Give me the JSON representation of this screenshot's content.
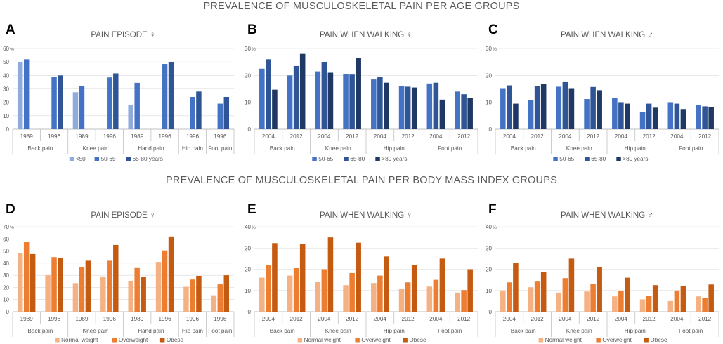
{
  "figure": {
    "title_top": "PREVALENCE OF MUSCULOSKELETAL PAIN PER AGE GROUPS",
    "title_bottom": "PREVALENCE OF MUSCULOSKELETAL PAIN PER BODY MASS INDEX GROUPS"
  },
  "colors": {
    "age_lt50": "#8FAADC",
    "age_50_65": "#4472C4",
    "age_65_80": "#2F5597",
    "age_gt80": "#1F3864",
    "bmi_normal": "#F4B183",
    "bmi_overweight": "#ED7D31",
    "bmi_obese": "#C55A11",
    "axis": "#bfbfbf",
    "text": "#595959"
  },
  "chart_data": [
    {
      "panel": "A",
      "type": "bar",
      "title": "PAIN EPISODE ♀",
      "ylim": [
        0,
        60
      ],
      "yticks": [
        0,
        10,
        20,
        30,
        40,
        50,
        60
      ],
      "ytick_labels": [
        "0",
        "10",
        "20",
        "30",
        "40",
        "50",
        "60"
      ],
      "unit": "%",
      "groups": [
        {
          "label": "Back pain",
          "categories": [
            "1989",
            "1996"
          ]
        },
        {
          "label": "Knee pain",
          "categories": [
            "1989",
            "1996"
          ]
        },
        {
          "label": "Hand pain",
          "categories": [
            "1989",
            "1996"
          ]
        },
        {
          "label": "Hip pain",
          "categories": [
            "1996"
          ]
        },
        {
          "label": "Foot pain",
          "categories": [
            "1996"
          ]
        }
      ],
      "series": [
        {
          "name": "<50",
          "color_key": "age_lt50",
          "values": [
            50,
            null,
            27.5,
            null,
            18,
            null,
            null,
            null
          ]
        },
        {
          "name": "50-65",
          "color_key": "age_50_65",
          "values": [
            52,
            39,
            32,
            38.5,
            34.5,
            48.5,
            24,
            19
          ]
        },
        {
          "name": "65-80 years",
          "color_key": "age_65_80",
          "values": [
            null,
            40,
            null,
            41.5,
            null,
            50,
            28,
            24
          ]
        }
      ]
    },
    {
      "panel": "B",
      "type": "bar",
      "title": "PAIN WHEN WALKING ♀",
      "ylim": [
        0,
        30
      ],
      "yticks": [
        0,
        10,
        20,
        30
      ],
      "ytick_labels": [
        "0",
        "10",
        "20",
        "30"
      ],
      "unit": "%",
      "groups": [
        {
          "label": "Back pain",
          "categories": [
            "2004",
            "2012"
          ]
        },
        {
          "label": "Knee pain",
          "categories": [
            "2004",
            "2012"
          ]
        },
        {
          "label": "Hip pain",
          "categories": [
            "2004",
            "2012"
          ]
        },
        {
          "label": "Foot pain",
          "categories": [
            "2004",
            "2012"
          ]
        }
      ],
      "series": [
        {
          "name": "50-65",
          "color_key": "age_50_65",
          "values": [
            22.5,
            20,
            21.5,
            20.5,
            18.5,
            16,
            17,
            14
          ]
        },
        {
          "name": "65-80",
          "color_key": "age_65_80",
          "values": [
            26,
            23.5,
            25,
            20.3,
            19.5,
            15.8,
            17.3,
            13
          ]
        },
        {
          "name": ">80 years",
          "color_key": "age_gt80",
          "values": [
            14.7,
            28,
            21,
            26.5,
            17.3,
            15.5,
            11,
            11.7
          ]
        }
      ]
    },
    {
      "panel": "C",
      "type": "bar",
      "title": "PAIN WHEN WALKING ♂",
      "ylim": [
        0,
        30
      ],
      "yticks": [
        0,
        10,
        20,
        30
      ],
      "ytick_labels": [
        "0",
        "10",
        "20",
        "30"
      ],
      "unit": "%",
      "groups": [
        {
          "label": "Back pain",
          "categories": [
            "2004",
            "2012"
          ]
        },
        {
          "label": "Knee pain",
          "categories": [
            "2004",
            "2012"
          ]
        },
        {
          "label": "Hip pain",
          "categories": [
            "2004",
            "2012"
          ]
        },
        {
          "label": "Foot pain",
          "categories": [
            "2004",
            "2012"
          ]
        }
      ],
      "series": [
        {
          "name": "50-65",
          "color_key": "age_50_65",
          "values": [
            15,
            10.7,
            15.8,
            11.2,
            11.5,
            6.5,
            9.8,
            9
          ]
        },
        {
          "name": "65-80",
          "color_key": "age_65_80",
          "values": [
            16.3,
            16,
            17.5,
            15.7,
            9.8,
            9.5,
            9.5,
            8.5
          ]
        },
        {
          "name": ">80 years",
          "color_key": "age_gt80",
          "values": [
            9.5,
            16.8,
            15,
            14.5,
            9.5,
            8,
            7.5,
            8.3
          ]
        }
      ]
    },
    {
      "panel": "D",
      "type": "bar",
      "title": "PAIN EPISODE ♀",
      "ylim": [
        0,
        70
      ],
      "yticks": [
        0,
        10,
        20,
        30,
        40,
        50,
        60,
        70
      ],
      "ytick_labels": [
        "0",
        "10",
        "20",
        "30",
        "40",
        "50",
        "60",
        "70"
      ],
      "unit": "%",
      "groups": [
        {
          "label": "Back pain",
          "categories": [
            "1989",
            "1996"
          ]
        },
        {
          "label": "Knee pain",
          "categories": [
            "1989",
            "1996"
          ]
        },
        {
          "label": "Hand pain",
          "categories": [
            "1989",
            "1996"
          ]
        },
        {
          "label": "Hip pain",
          "categories": [
            "1996"
          ]
        },
        {
          "label": "Foot pain",
          "categories": [
            "1996"
          ]
        }
      ],
      "series": [
        {
          "name": "Normal weight",
          "color_key": "bmi_normal",
          "values": [
            48.5,
            30,
            23.5,
            29,
            25.5,
            41,
            20.5,
            13.5
          ]
        },
        {
          "name": "Overweight",
          "color_key": "bmi_overweight",
          "values": [
            57.5,
            45,
            37,
            42,
            36,
            50.5,
            26.5,
            22.5
          ]
        },
        {
          "name": "Obese",
          "color_key": "bmi_obese",
          "values": [
            47.5,
            44.5,
            42,
            55,
            28.5,
            62,
            29.5,
            30
          ]
        }
      ]
    },
    {
      "panel": "E",
      "type": "bar",
      "title": "PAIN WHEN WALKING ♀",
      "ylim": [
        0,
        40
      ],
      "yticks": [
        0,
        10,
        20,
        30,
        40
      ],
      "ytick_labels": [
        "0",
        "10",
        "20",
        "30",
        "40"
      ],
      "unit": "%",
      "groups": [
        {
          "label": "Back pain",
          "categories": [
            "2004",
            "2012"
          ]
        },
        {
          "label": "Knee pain",
          "categories": [
            "2004",
            "2012"
          ]
        },
        {
          "label": "Hip pain",
          "categories": [
            "2004",
            "2012"
          ]
        },
        {
          "label": "Foot pain",
          "categories": [
            "2004",
            "2012"
          ]
        }
      ],
      "series": [
        {
          "name": "Normal weight",
          "color_key": "bmi_normal",
          "values": [
            16,
            17,
            14,
            12.5,
            13.5,
            10.8,
            11.8,
            9
          ]
        },
        {
          "name": "Overweight",
          "color_key": "bmi_overweight",
          "values": [
            22,
            20.5,
            20,
            18.2,
            17,
            13.8,
            15,
            10.2
          ]
        },
        {
          "name": "Obese",
          "color_key": "bmi_obese",
          "values": [
            32.3,
            32,
            35,
            32.5,
            26,
            22,
            25,
            20
          ]
        }
      ]
    },
    {
      "panel": "F",
      "type": "bar",
      "title": "PAIN WHEN WALKING ♂",
      "ylim": [
        0,
        40
      ],
      "yticks": [
        0,
        10,
        20,
        30,
        40
      ],
      "ytick_labels": [
        "0",
        "10",
        "20",
        "30",
        "40"
      ],
      "unit": "%",
      "groups": [
        {
          "label": "Back pain",
          "categories": [
            "2004",
            "2012"
          ]
        },
        {
          "label": "Knee pain",
          "categories": [
            "2004",
            "2012"
          ]
        },
        {
          "label": "Hip pain",
          "categories": [
            "2004",
            "2012"
          ]
        },
        {
          "label": "Foot pain",
          "categories": [
            "2004",
            "2012"
          ]
        }
      ],
      "series": [
        {
          "name": "Normal weight",
          "color_key": "bmi_normal",
          "values": [
            10,
            11.5,
            9,
            9.5,
            7.2,
            5.8,
            5,
            7.2
          ]
        },
        {
          "name": "Overweight",
          "color_key": "bmi_overweight",
          "values": [
            13.8,
            14.5,
            15.8,
            13.2,
            9.8,
            7.5,
            10,
            6.5
          ]
        },
        {
          "name": "Obese",
          "color_key": "bmi_obese",
          "values": [
            23,
            18.8,
            25,
            21,
            16,
            12.5,
            12,
            12.8
          ]
        }
      ]
    }
  ]
}
